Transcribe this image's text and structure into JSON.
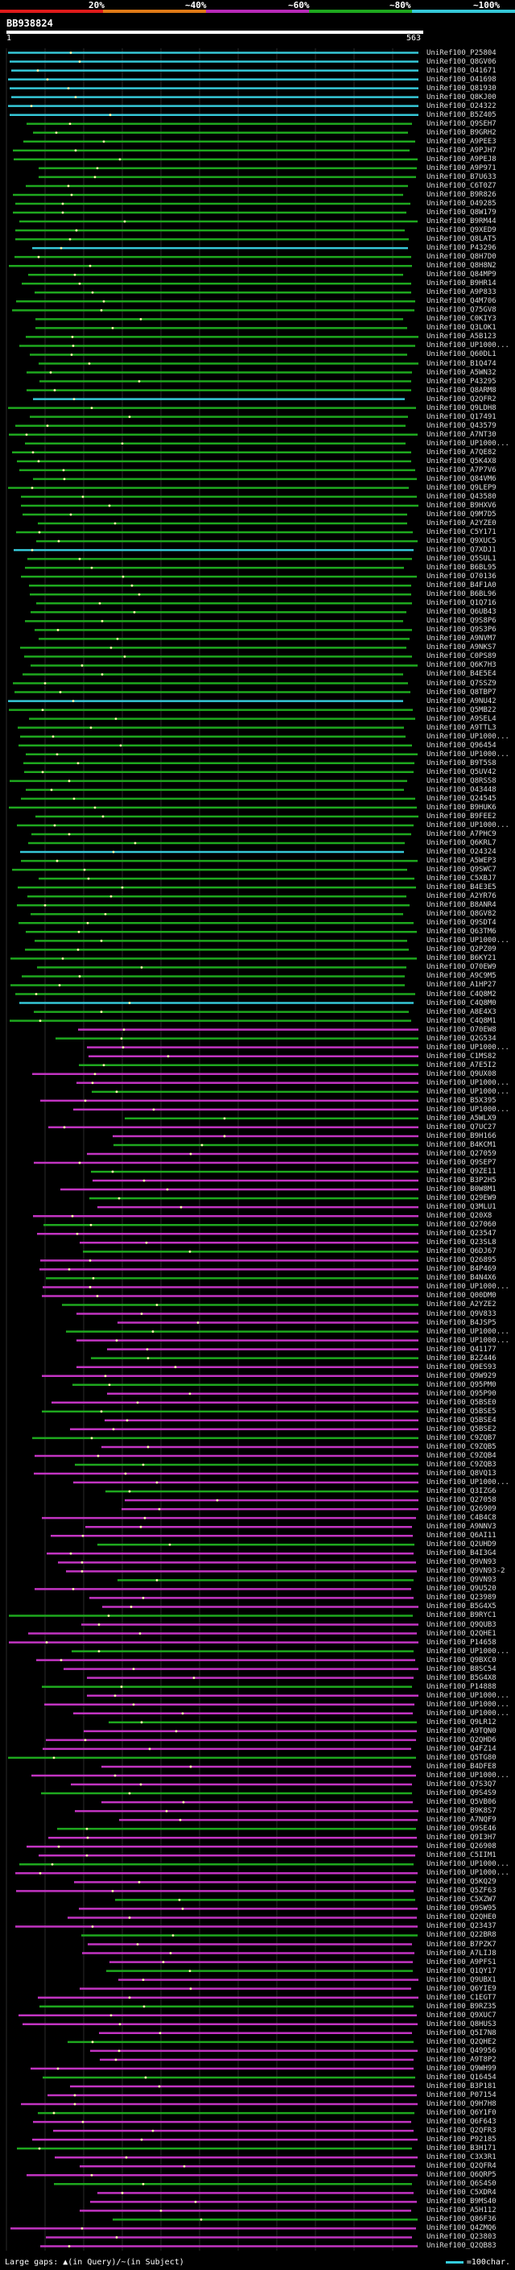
{
  "legend": {
    "segments": [
      {
        "label": "20%",
        "color": "#e01b1b"
      },
      {
        "label": "~40%",
        "color": "#e07a17"
      },
      {
        "label": "~60%",
        "color": "#b82ab8"
      },
      {
        "label": "~80%",
        "color": "#1ea81e"
      },
      {
        "label": "~100%",
        "color": "#36c8d8"
      }
    ]
  },
  "query": {
    "id": "BB938824",
    "start": "1",
    "end": "563"
  },
  "colors": {
    "cyan": "#36c8d8",
    "green": "#1ea81e",
    "magenta": "#c234c2",
    "grid": "#2a2a2a",
    "dot": "#ffffaa"
  },
  "hits": [
    "UniRef100_P25804",
    "UniRef100_Q8GV06",
    "UniRef100_O41671",
    "UniRef100_O41698",
    "UniRef100_Q81930",
    "UniRef100_Q8KJ00",
    "UniRef100_O24322",
    "UniRef100_B5Z405",
    "UniRef100_Q9SEH7",
    "UniRef100_B9GRH2",
    "UniRef100_A9PEE3",
    "UniRef100_A9PJH7",
    "UniRef100_A9PEJ8",
    "UniRef100_A9P971",
    "UniRef100_B7U633",
    "UniRef100_C6T0Z7",
    "UniRef100_B9R826",
    "UniRef100_O49285",
    "UniRef100_Q8W179",
    "UniRef100_B9RM44",
    "UniRef100_Q9XED9",
    "UniRef100_Q8LAT5",
    "UniRef100_P43296",
    "UniRef100_Q8H7D0",
    "UniRef100_Q8H8N2",
    "UniRef100_Q84MP9",
    "UniRef100_B9HR14",
    "UniRef100_A9P833",
    "UniRef100_Q4M706",
    "UniRef100_Q75GV8",
    "UniRef100_C0KIY3",
    "UniRef100_Q3LOK1",
    "UniRef100_A5B123",
    "UniRef100_UP1000...",
    "UniRef100_Q60DL1",
    "UniRef100_B1Q474",
    "UniRef100_A5WN32",
    "UniRef100_P43295",
    "UniRef100_Q8ARM8",
    "UniRef100_Q2QFR2",
    "UniRef100_Q9LDH8",
    "UniRef100_Q17491",
    "UniRef100_Q43579",
    "UniRef100_A7NT30",
    "UniRef100_UP1000...",
    "UniRef100_A7QE82",
    "UniRef100_Q5K4X8",
    "UniRef100_A7P7V6",
    "UniRef100_Q84VM6",
    "UniRef100_Q9LEP9",
    "UniRef100_Q43580",
    "UniRef100_B9HXV6",
    "UniRef100_Q9M7D5",
    "UniRef100_A2YZE0",
    "UniRef100_C5Y171",
    "UniRef100_Q9XUC5",
    "UniRef100_Q7XDJ1",
    "UniRef100_Q5SUL1",
    "UniRef100_B6BL95",
    "UniRef100_O70136",
    "UniRef100_B4F1A0",
    "UniRef100_B6BL96",
    "UniRef100_Q1Q716",
    "UniRef100_Q6UB43",
    "UniRef100_Q9S8P6",
    "UniRef100_Q9S3P6",
    "UniRef100_A9NVM7",
    "UniRef100_A9NKS7",
    "UniRef100_C0PS89",
    "UniRef100_Q6K7H3",
    "UniRef100_B4E5E4",
    "UniRef100_Q7SSZ9",
    "UniRef100_Q8TBP7",
    "UniRef100_A9NU42",
    "UniRef100_Q5MB22",
    "UniRef100_A9SEL4",
    "UniRef100_A9TTL3",
    "UniRef100_UP1000...",
    "UniRef100_Q96454",
    "UniRef100_UP1000...",
    "UniRef100_B9T5S8",
    "UniRef100_Q5UV42",
    "UniRef100_Q8RSS8",
    "UniRef100_O43448",
    "UniRef100_Q24545",
    "UniRef100_B9HUK6",
    "UniRef100_B9FEE2",
    "UniRef100_UP1000...",
    "UniRef100_A7PHC9",
    "UniRef100_Q6KRL7",
    "UniRef100_O24324",
    "UniRef100_A5WEP3",
    "UniRef100_Q9SWC7",
    "UniRef100_C5XBJ7",
    "UniRef100_B4E3E5",
    "UniRef100_A2YR76",
    "UniRef100_B8ANR4",
    "UniRef100_Q8GV82",
    "UniRef100_Q9SDT4",
    "UniRef100_Q63TM6",
    "UniRef100_UP1000...",
    "UniRef100_Q2PZ09",
    "UniRef100_B6KY21",
    "UniRef100_O70EW9",
    "UniRef100_A9C9M5",
    "UniRef100_A1HP27",
    "UniRef100_C4Q8M2",
    "UniRef100_C4Q8M0",
    "UniRef100_A8E4X3",
    "UniRef100_C4Q8M1",
    "UniRef100_O70EW8",
    "UniRef100_Q2G534",
    "UniRef100_UP1000...",
    "UniRef100_C1MS82",
    "UniRef100_A7E5I2",
    "UniRef100_Q9UX08",
    "UniRef100_UP1000...",
    "UniRef100_UP1000...",
    "UniRef100_B5X395",
    "UniRef100_UP1000...",
    "UniRef100_A5WLX9",
    "UniRef100_Q7UC27",
    "UniRef100_B9H166",
    "UniRef100_B4KCM1",
    "UniRef100_Q27059",
    "UniRef100_Q9SEP7",
    "UniRef100_Q9ZE11",
    "UniRef100_B3P2H5",
    "UniRef100_B0W8M1",
    "UniRef100_Q29EW9",
    "UniRef100_Q3MLU1",
    "UniRef100_Q20X8",
    "UniRef100_Q27060",
    "UniRef100_Q23547",
    "UniRef100_Q23SL8",
    "UniRef100_Q6DJ67",
    "UniRef100_Q26895",
    "UniRef100_B4P469",
    "UniRef100_B4N4X6",
    "UniRef100_UP1000...",
    "UniRef100_Q00DM0",
    "UniRef100_A2YZE2",
    "UniRef100_Q9V833",
    "UniRef100_B4JSP5",
    "UniRef100_UP1000...",
    "UniRef100_UP1000...",
    "UniRef100_Q41177",
    "UniRef100_B2Z446",
    "UniRef100_Q9ES93",
    "UniRef100_Q9W929",
    "UniRef100_Q95PM0",
    "UniRef100_Q95P90",
    "UniRef100_Q5BSE0",
    "UniRef100_Q5BSE5",
    "UniRef100_Q5BSE4",
    "UniRef100_Q5BSE2",
    "UniRef100_C9ZQB7",
    "UniRef100_C9ZQB5",
    "UniRef100_C9ZQB4",
    "UniRef100_C9ZQB3",
    "UniRef100_Q8VQ13",
    "UniRef100_UP1000...",
    "UniRef100_Q3IZG6",
    "UniRef100_Q27058",
    "UniRef100_Q26909",
    "UniRef100_C4B4C8",
    "UniRef100_A9NNV3",
    "UniRef100_Q6AI11",
    "UniRef100_Q2UHD9",
    "UniRef100_B4I3G4",
    "UniRef100_Q9VN93",
    "UniRef100_Q9VN93-2",
    "UniRef100_Q9VN93",
    "UniRef100_Q9U520",
    "UniRef100_Q23989",
    "UniRef100_B5G4X5",
    "UniRef100_B9RYC1",
    "UniRef100_Q9QUB3",
    "UniRef100_Q2QHE1",
    "UniRef100_P14658",
    "UniRef100_UP1000...",
    "UniRef100_Q9BXC0",
    "UniRef100_B8SC54",
    "UniRef100_B5G4X8",
    "UniRef100_P14888",
    "UniRef100_UP1000...",
    "UniRef100_UP1000...",
    "UniRef100_UP1000...",
    "UniRef100_Q9LR12",
    "UniRef100_A9TQN0",
    "UniRef100_Q2QHD6",
    "UniRef100_Q4FZ14",
    "UniRef100_Q5TG80",
    "UniRef100_B4DFE8",
    "UniRef100_UP1000...",
    "UniRef100_Q7S3Q7",
    "UniRef100_Q9S4S9",
    "UniRef100_Q5VB06",
    "UniRef100_B9K8S7",
    "UniRef100_A7NQF9",
    "UniRef100_Q9SE46",
    "UniRef100_Q9I3H7",
    "UniRef100_Q26908",
    "UniRef100_C5IIM1",
    "UniRef100_UP1000...",
    "UniRef100_UP1000...",
    "UniRef100_Q5KQ29",
    "UniRef100_Q5ZF63",
    "UniRef100_C5XZW7",
    "UniRef100_Q9SW95",
    "UniRef100_Q2QHE0",
    "UniRef100_Q23437",
    "UniRef100_Q22BR8",
    "UniRef100_B7PZK7",
    "UniRef100_A7LIJ8",
    "UniRef100_A9PFS1",
    "UniRef100_Q1QY17",
    "UniRef100_Q9UBX1",
    "UniRef100_Q6YIE9",
    "UniRef100_C1EGT7",
    "UniRef100_B9RZ35",
    "UniRef100_Q9XUC7",
    "UniRef100_Q8HUS3",
    "UniRef100_Q5I7N8",
    "UniRef100_Q2QHE2",
    "UniRef100_Q49956",
    "UniRef100_A9T8P2",
    "UniRef100_Q9WH99",
    "UniRef100_Q16454",
    "UniRef100_B3P181",
    "UniRef100_P07154",
    "UniRef100_Q9H7H8",
    "UniRef100_Q6Y1F0",
    "UniRef100_Q6F643",
    "UniRef100_Q2QFR3",
    "UniRef100_P92185",
    "UniRef100_B3H171",
    "UniRef100_C3X3R1",
    "UniRef100_Q2QFR4",
    "UniRef100_Q6QRP5",
    "UniRef100_Q6S4S0",
    "UniRef100_C5XDR4",
    "UniRef100_B9MS40",
    "UniRef100_A5H112",
    "UniRef100_Q86F36",
    "UniRef100_Q4ZMQ6",
    "UniRef100_Q23803",
    "UniRef100_Q2QB83"
  ],
  "footer": {
    "gap_text": "Large gaps: ▲(in Query)/~(in Subject)",
    "scale_text": "=100char."
  }
}
